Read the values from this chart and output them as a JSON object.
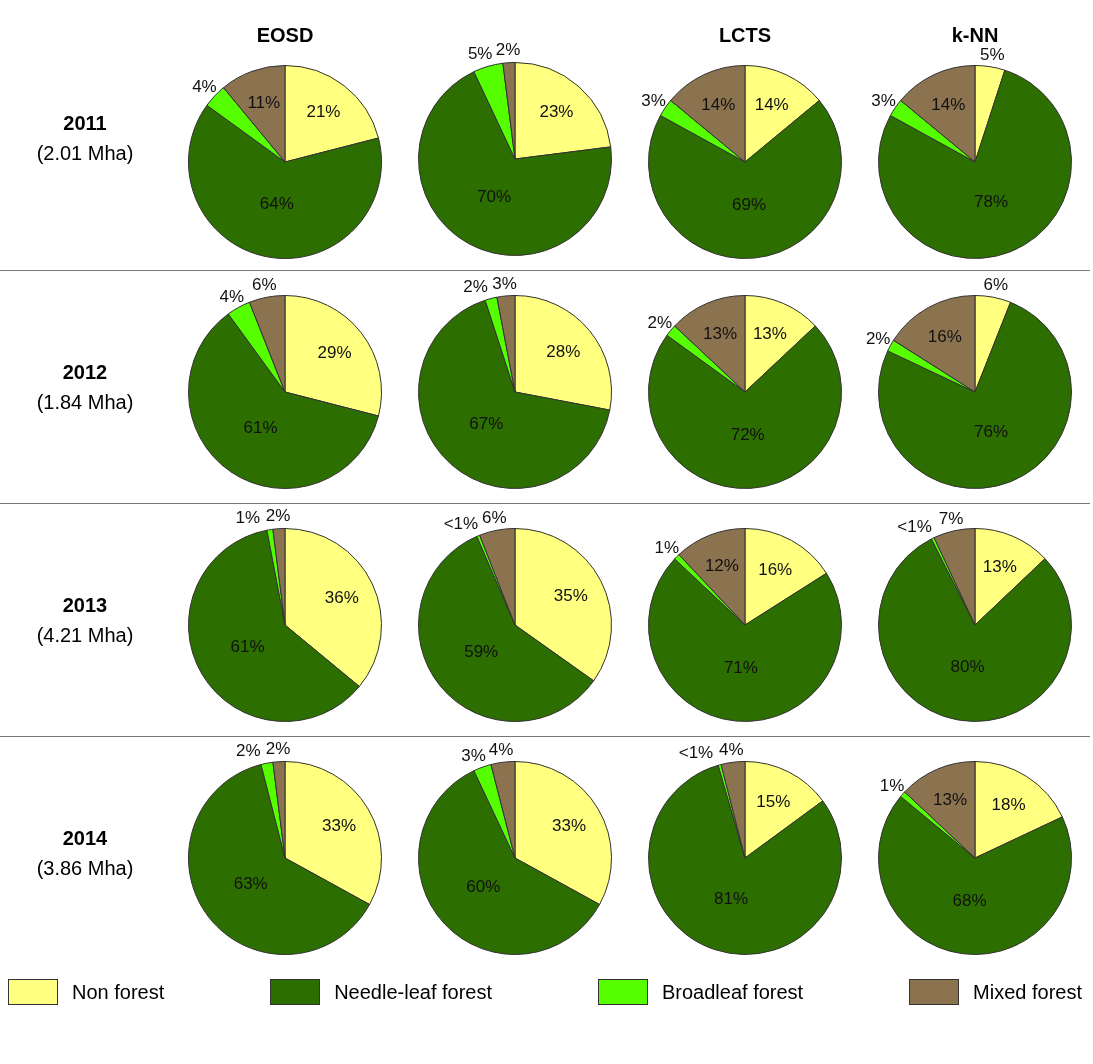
{
  "chart_data": [
    {
      "type": "pie",
      "title": "EOSD",
      "legend": "bottom",
      "annotations": [
        "2011",
        "(2.01 Mha)"
      ],
      "categories": [
        "Non forest",
        "Needle-leaf forest",
        "Broadleaf forest",
        "Mixed forest"
      ],
      "colors": [
        "#ffff80",
        "#2d6e00",
        "#55ff00",
        "#8c7350"
      ],
      "values": [
        21,
        64,
        4,
        11
      ],
      "value_labels": [
        "21%",
        "64%",
        "4%",
        "11%"
      ]
    },
    {
      "type": "pie",
      "categories": [
        null,
        null,
        null,
        null
      ],
      "colors": [
        "#ffff80",
        "#2d6e00",
        "#55ff00",
        "#8c7350"
      ],
      "values": [
        23,
        70,
        5,
        2
      ],
      "value_labels": [
        "23%",
        "70%",
        "5%",
        "2%"
      ]
    },
    {
      "type": "pie",
      "title": "LCTS",
      "categories": [
        null,
        null,
        null,
        null
      ],
      "colors": [
        "#ffff80",
        "#2d6e00",
        "#55ff00",
        "#8c7350"
      ],
      "values": [
        14,
        69,
        3,
        14
      ],
      "value_labels": [
        "14%",
        "69%",
        "3%",
        "14%"
      ]
    },
    {
      "type": "pie",
      "title": "k-NN",
      "categories": [
        null,
        null,
        null,
        null
      ],
      "colors": [
        "#ffff80",
        "#2d6e00",
        "#55ff00",
        "#8c7350"
      ],
      "values": [
        5,
        78,
        3,
        14
      ],
      "value_labels": [
        "5%",
        "78%",
        "3%",
        "14%"
      ]
    },
    {
      "type": "pie",
      "annotations": [
        "2012",
        "(1.84 Mha)"
      ],
      "categories": [
        null,
        null,
        null,
        null
      ],
      "colors": [
        "#ffff80",
        "#2d6e00",
        "#55ff00",
        "#8c7350"
      ],
      "values": [
        29,
        61,
        4,
        6
      ],
      "value_labels": [
        "29%",
        "61%",
        "4%",
        "6%"
      ]
    },
    {
      "type": "pie",
      "categories": [
        null,
        null,
        null,
        null
      ],
      "colors": [
        "#ffff80",
        "#2d6e00",
        "#55ff00",
        "#8c7350"
      ],
      "values": [
        28,
        67,
        2,
        3
      ],
      "value_labels": [
        "28%",
        "67%",
        "2%",
        "3%"
      ]
    },
    {
      "type": "pie",
      "categories": [
        null,
        null,
        null,
        null
      ],
      "colors": [
        "#ffff80",
        "#2d6e00",
        "#55ff00",
        "#8c7350"
      ],
      "values": [
        13,
        72,
        2,
        13
      ],
      "value_labels": [
        "13%",
        "72%",
        "2%",
        "13%"
      ]
    },
    {
      "type": "pie",
      "categories": [
        null,
        null,
        null,
        null
      ],
      "colors": [
        "#ffff80",
        "#2d6e00",
        "#55ff00",
        "#8c7350"
      ],
      "values": [
        6,
        76,
        2,
        16
      ],
      "value_labels": [
        "6%",
        "76%",
        "2%",
        "16%"
      ]
    },
    {
      "type": "pie",
      "annotations": [
        "2013",
        "(4.21 Mha)"
      ],
      "categories": [
        null,
        null,
        null,
        null
      ],
      "colors": [
        "#ffff80",
        "#2d6e00",
        "#55ff00",
        "#8c7350"
      ],
      "values": [
        36,
        61,
        1,
        2
      ],
      "value_labels": [
        "36%",
        "61%",
        "1%",
        "2%"
      ]
    },
    {
      "type": "pie",
      "categories": [
        null,
        null,
        null,
        null
      ],
      "colors": [
        "#ffff80",
        "#2d6e00",
        "#55ff00",
        "#8c7350"
      ],
      "values": [
        35,
        59,
        0.5,
        6
      ],
      "value_labels": [
        "35%",
        "59%",
        "<1%",
        "6%"
      ]
    },
    {
      "type": "pie",
      "categories": [
        null,
        null,
        null,
        null
      ],
      "colors": [
        "#ffff80",
        "#2d6e00",
        "#55ff00",
        "#8c7350"
      ],
      "values": [
        16,
        71,
        1,
        12
      ],
      "value_labels": [
        "16%",
        "71%",
        "1%",
        "12%"
      ]
    },
    {
      "type": "pie",
      "categories": [
        null,
        null,
        null,
        null
      ],
      "colors": [
        "#ffff80",
        "#2d6e00",
        "#55ff00",
        "#8c7350"
      ],
      "values": [
        13,
        80,
        0.5,
        7
      ],
      "value_labels": [
        "13%",
        "80%",
        "<1%",
        "7%"
      ]
    },
    {
      "type": "pie",
      "annotations": [
        "2014",
        "(3.86 Mha)"
      ],
      "categories": [
        null,
        null,
        null,
        null
      ],
      "colors": [
        "#ffff80",
        "#2d6e00",
        "#55ff00",
        "#8c7350"
      ],
      "values": [
        33,
        63,
        2,
        2
      ],
      "value_labels": [
        "33%",
        "63%",
        "2%",
        "2%"
      ]
    },
    {
      "type": "pie",
      "categories": [
        null,
        null,
        null,
        null
      ],
      "colors": [
        "#ffff80",
        "#2d6e00",
        "#55ff00",
        "#8c7350"
      ],
      "values": [
        33,
        60,
        3,
        4
      ],
      "value_labels": [
        "33%",
        "60%",
        "3%",
        "4%"
      ]
    },
    {
      "type": "pie",
      "categories": [
        null,
        null,
        null,
        null
      ],
      "colors": [
        "#ffff80",
        "#2d6e00",
        "#55ff00",
        "#8c7350"
      ],
      "values": [
        15,
        81,
        0.5,
        4
      ],
      "value_labels": [
        "15%",
        "81%",
        "<1%",
        "4%"
      ]
    },
    {
      "type": "pie",
      "categories": [
        null,
        null,
        null,
        null
      ],
      "colors": [
        "#ffff80",
        "#2d6e00",
        "#55ff00",
        "#8c7350"
      ],
      "values": [
        18,
        68,
        1,
        13
      ],
      "value_labels": [
        "18%",
        "68%",
        "1%",
        "13%"
      ]
    }
  ]
}
